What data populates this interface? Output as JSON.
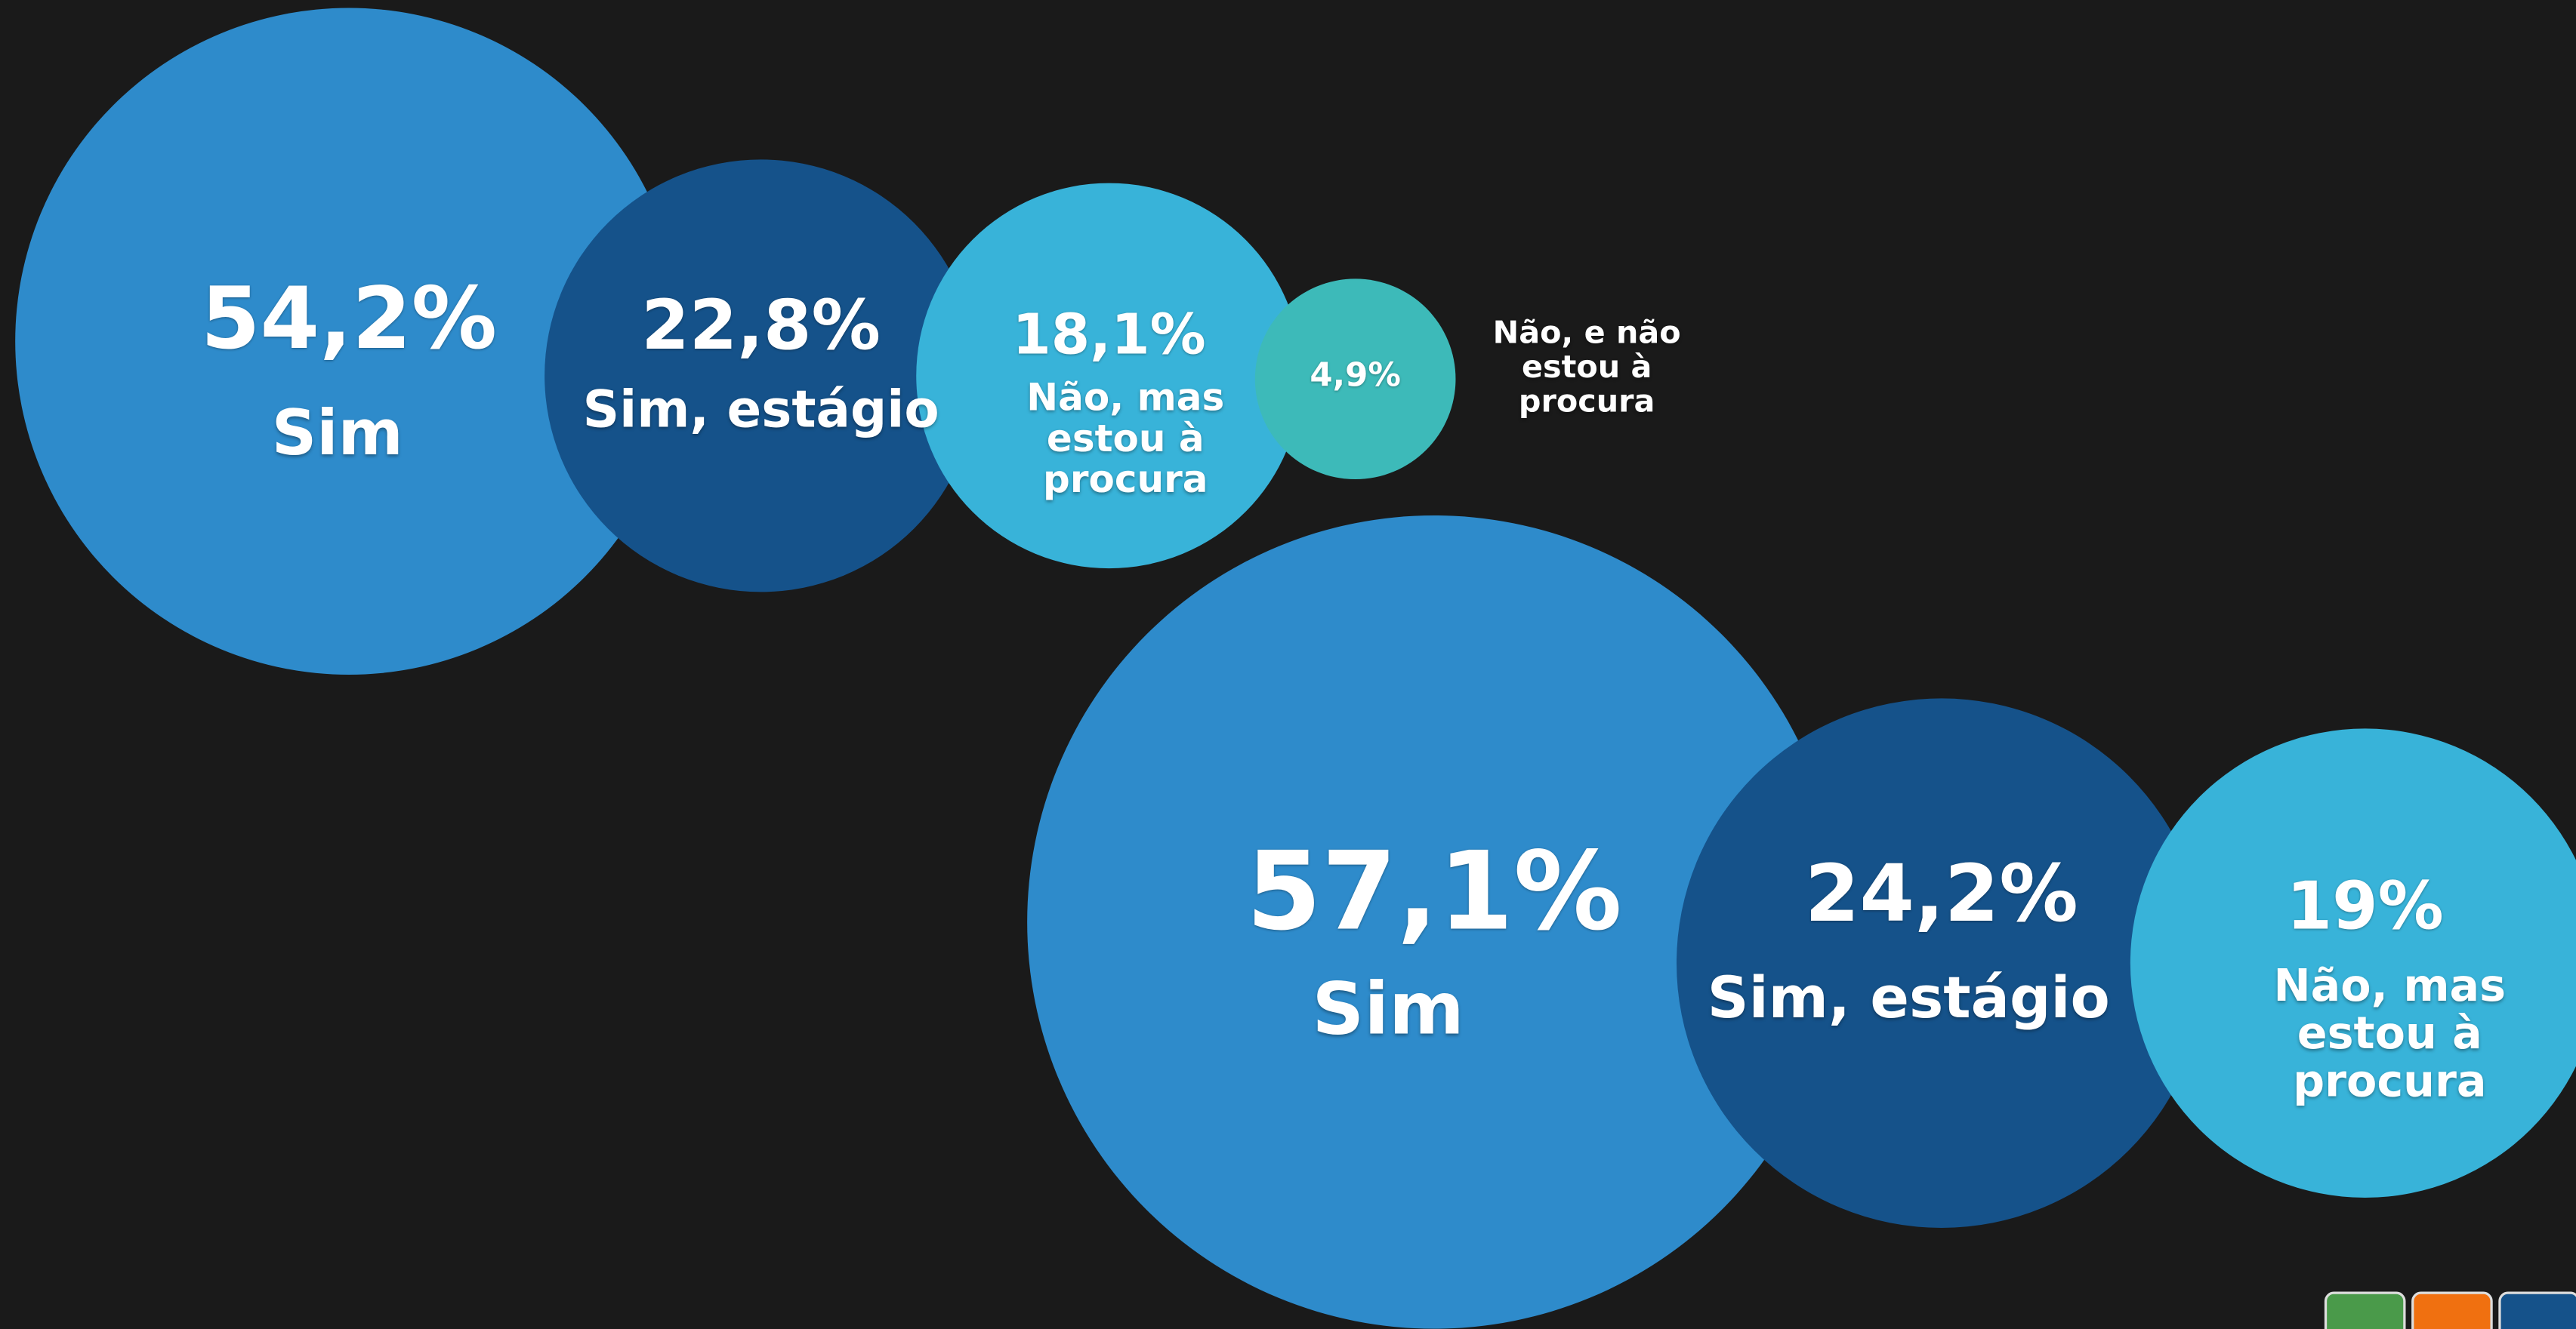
{
  "chart_data": [
    {
      "type": "bubble",
      "categories": [
        "Sim",
        "Sim, estágio",
        "Não, mas estou à procura",
        "Não, e não estou à procura"
      ],
      "values": [
        54.2,
        22.8,
        18.1,
        4.9
      ],
      "value_labels": [
        "54,2%",
        "22,8%",
        "18,1%",
        "4,9%"
      ],
      "colors": [
        "#2e8bcb",
        "#15528a",
        "#38b3d9",
        "#3dbab9"
      ]
    },
    {
      "type": "bubble",
      "categories": [
        "Sim",
        "Sim, estágio",
        "Não, mas estou à procura"
      ],
      "values": [
        57.1,
        24.2,
        19
      ],
      "value_labels": [
        "57,1%",
        "24,2%",
        "19%"
      ],
      "colors": [
        "#2e8bcb",
        "#15528a",
        "#38b3d9"
      ]
    }
  ]
}
